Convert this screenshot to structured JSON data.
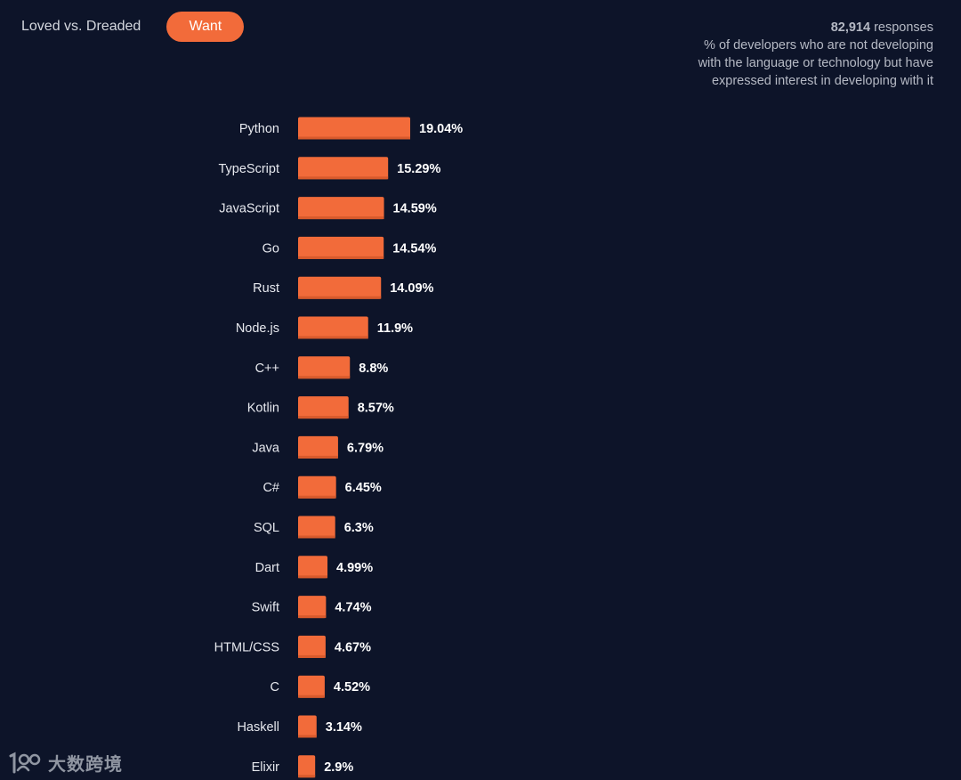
{
  "tabs": {
    "loved_dreaded": "Loved vs. Dreaded",
    "want": "Want"
  },
  "info": {
    "responses_count": "82,914",
    "responses_word": " responses",
    "description": "% of developers who are not developing with the language or technology but have expressed interest in developing with it"
  },
  "watermark": {
    "text": "大数跨境"
  },
  "colors": {
    "bar": "#f26b3a",
    "background": "#0d1429"
  },
  "chart_data": {
    "type": "bar",
    "orientation": "horizontal",
    "title": "",
    "xlabel": "",
    "ylabel": "",
    "xlim": [
      0,
      19.04
    ],
    "grid": false,
    "categories": [
      "Python",
      "TypeScript",
      "JavaScript",
      "Go",
      "Rust",
      "Node.js",
      "C++",
      "Kotlin",
      "Java",
      "C#",
      "SQL",
      "Dart",
      "Swift",
      "HTML/CSS",
      "C",
      "Haskell",
      "Elixir"
    ],
    "values": [
      19.04,
      15.29,
      14.59,
      14.54,
      14.09,
      11.9,
      8.8,
      8.57,
      6.79,
      6.45,
      6.3,
      4.99,
      4.74,
      4.67,
      4.52,
      3.14,
      2.9
    ],
    "value_labels": [
      "19.04%",
      "15.29%",
      "14.59%",
      "14.54%",
      "14.09%",
      "11.9%",
      "8.8%",
      "8.57%",
      "6.79%",
      "6.45%",
      "6.3%",
      "4.99%",
      "4.74%",
      "4.67%",
      "4.52%",
      "3.14%",
      "2.9%"
    ]
  }
}
